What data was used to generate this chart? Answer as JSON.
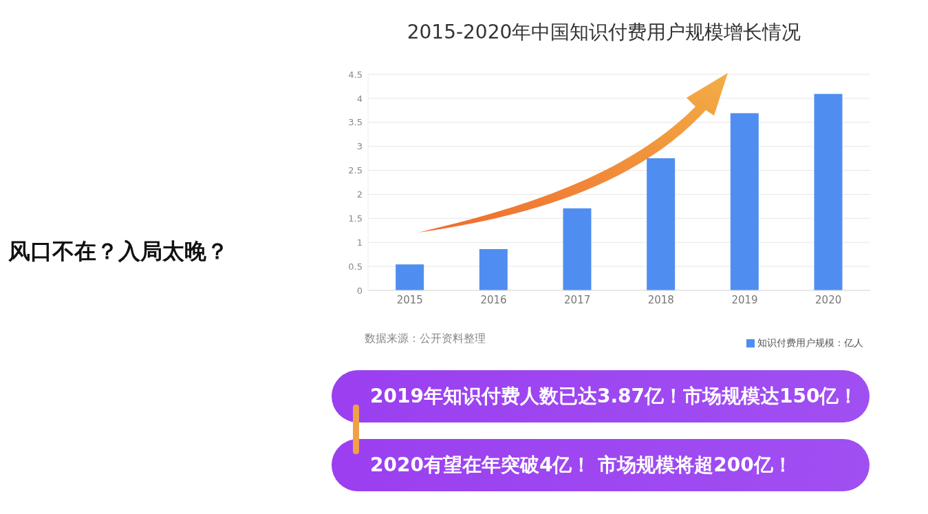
{
  "chart_data": {
    "type": "bar",
    "title": "2015-2020年中国知识付费用户规模增长情况",
    "categories": [
      "2015",
      "2016",
      "2017",
      "2018",
      "2019",
      "2020"
    ],
    "series": [
      {
        "name": "知识付费用户规模：亿人",
        "color": "#4f8ef0",
        "values": [
          0.54,
          0.86,
          1.71,
          2.75,
          3.69,
          4.09
        ]
      }
    ],
    "ylim": [
      0,
      4.5
    ],
    "yticks": [
      0,
      0.5,
      1,
      1.5,
      2,
      2.5,
      3,
      3.5,
      4,
      4.5
    ],
    "grid": "y",
    "legend": "bottom right",
    "annotations": [
      "数据来源：公开资料整理",
      "2019年知识付费人数已达3.87亿！市场规模达150亿！",
      "2020有望在年突破4亿！ 市场规模将超200亿！",
      "风口不在？入局太晚？"
    ]
  }
}
